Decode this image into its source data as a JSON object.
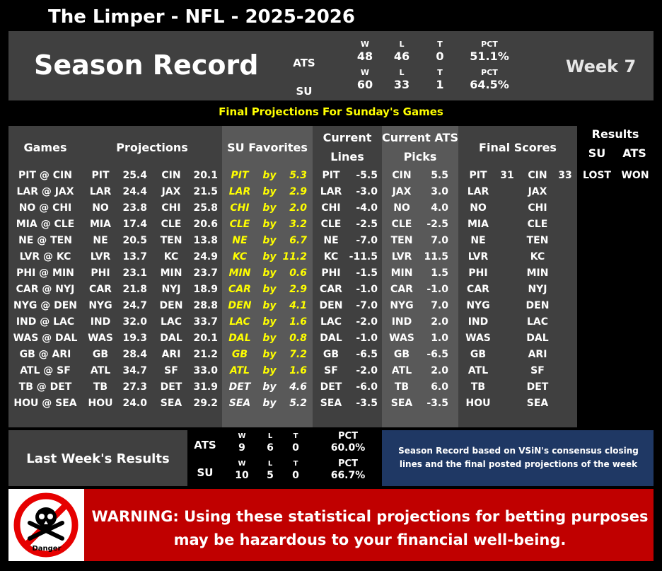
{
  "title": "The Limper - NFL - 2025-2026",
  "season_label": "Season Record",
  "week_label": "Week 7",
  "season_record": {
    "ats": {
      "label": "ATS",
      "w_label": "W",
      "l_label": "L",
      "t_label": "T",
      "pct_label": "PCT",
      "w": "48",
      "l": "46",
      "t": "0",
      "pct": "51.1%"
    },
    "su": {
      "label": "SU",
      "w_label": "W",
      "l_label": "L",
      "t_label": "T",
      "pct_label": "PCT",
      "w": "60",
      "l": "33",
      "t": "1",
      "pct": "64.5%"
    }
  },
  "banner": "Final Projections For Sunday's Games",
  "headers": {
    "games": "Games",
    "projections": "Projections",
    "su_favorites": "SU Favorites",
    "current_lines_1": "Current",
    "current_lines_2": "Lines",
    "current_ats_1": "Current ATS",
    "current_ats_2": "Picks",
    "final_scores": "Final Scores",
    "results": "Results",
    "results_su": "SU",
    "results_ats": "ATS"
  },
  "games": [
    {
      "game": "PIT @ CIN",
      "t1": "PIT",
      "p1": "25.4",
      "t2": "CIN",
      "p2": "20.1",
      "fav": "PIT",
      "by": "by",
      "margin": "5.3",
      "fav_style": "yellow",
      "line_team": "PIT",
      "line": "-5.5",
      "pick": "CIN",
      "pick_line": "5.5",
      "s1": "PIT",
      "sc1": "31",
      "s2": "CIN",
      "sc2": "33",
      "res_su": "LOST",
      "res_ats": "WON"
    },
    {
      "game": "LAR @ JAX",
      "t1": "LAR",
      "p1": "24.4",
      "t2": "JAX",
      "p2": "21.5",
      "fav": "LAR",
      "by": "by",
      "margin": "2.9",
      "fav_style": "yellow",
      "line_team": "LAR",
      "line": "-3.0",
      "pick": "JAX",
      "pick_line": "3.0",
      "s1": "LAR",
      "sc1": "",
      "s2": "JAX",
      "sc2": "",
      "res_su": "",
      "res_ats": ""
    },
    {
      "game": "NO @ CHI",
      "t1": "NO",
      "p1": "23.8",
      "t2": "CHI",
      "p2": "25.8",
      "fav": "CHI",
      "by": "by",
      "margin": "2.0",
      "fav_style": "yellow",
      "line_team": "CHI",
      "line": "-4.0",
      "pick": "NO",
      "pick_line": "4.0",
      "s1": "NO",
      "sc1": "",
      "s2": "CHI",
      "sc2": "",
      "res_su": "",
      "res_ats": ""
    },
    {
      "game": "MIA @ CLE",
      "t1": "MIA",
      "p1": "17.4",
      "t2": "CLE",
      "p2": "20.6",
      "fav": "CLE",
      "by": "by",
      "margin": "3.2",
      "fav_style": "yellow",
      "line_team": "CLE",
      "line": "-2.5",
      "pick": "CLE",
      "pick_line": "-2.5",
      "s1": "MIA",
      "sc1": "",
      "s2": "CLE",
      "sc2": "",
      "res_su": "",
      "res_ats": ""
    },
    {
      "game": "NE @ TEN",
      "t1": "NE",
      "p1": "20.5",
      "t2": "TEN",
      "p2": "13.8",
      "fav": "NE",
      "by": "by",
      "margin": "6.7",
      "fav_style": "yellow",
      "line_team": "NE",
      "line": "-7.0",
      "pick": "TEN",
      "pick_line": "7.0",
      "s1": "NE",
      "sc1": "",
      "s2": "TEN",
      "sc2": "",
      "res_su": "",
      "res_ats": ""
    },
    {
      "game": "LVR @ KC",
      "t1": "LVR",
      "p1": "13.7",
      "t2": "KC",
      "p2": "24.9",
      "fav": "KC",
      "by": "by",
      "margin": "11.2",
      "fav_style": "yellow",
      "line_team": "KC",
      "line": "-11.5",
      "pick": "LVR",
      "pick_line": "11.5",
      "s1": "LVR",
      "sc1": "",
      "s2": "KC",
      "sc2": "",
      "res_su": "",
      "res_ats": ""
    },
    {
      "game": "PHI @ MIN",
      "t1": "PHI",
      "p1": "23.1",
      "t2": "MIN",
      "p2": "23.7",
      "fav": "MIN",
      "by": "by",
      "margin": "0.6",
      "fav_style": "yellow",
      "line_team": "PHI",
      "line": "-1.5",
      "pick": "MIN",
      "pick_line": "1.5",
      "s1": "PHI",
      "sc1": "",
      "s2": "MIN",
      "sc2": "",
      "res_su": "",
      "res_ats": ""
    },
    {
      "game": "CAR @ NYJ",
      "t1": "CAR",
      "p1": "21.8",
      "t2": "NYJ",
      "p2": "18.9",
      "fav": "CAR",
      "by": "by",
      "margin": "2.9",
      "fav_style": "yellow",
      "line_team": "CAR",
      "line": "-1.0",
      "pick": "CAR",
      "pick_line": "-1.0",
      "s1": "CAR",
      "sc1": "",
      "s2": "NYJ",
      "sc2": "",
      "res_su": "",
      "res_ats": ""
    },
    {
      "game": "NYG @ DEN",
      "t1": "NYG",
      "p1": "24.7",
      "t2": "DEN",
      "p2": "28.8",
      "fav": "DEN",
      "by": "by",
      "margin": "4.1",
      "fav_style": "yellow",
      "line_team": "DEN",
      "line": "-7.0",
      "pick": "NYG",
      "pick_line": "7.0",
      "s1": "NYG",
      "sc1": "",
      "s2": "DEN",
      "sc2": "",
      "res_su": "",
      "res_ats": ""
    },
    {
      "game": "IND @ LAC",
      "t1": "IND",
      "p1": "32.0",
      "t2": "LAC",
      "p2": "33.7",
      "fav": "LAC",
      "by": "by",
      "margin": "1.6",
      "fav_style": "yellow",
      "line_team": "LAC",
      "line": "-2.0",
      "pick": "IND",
      "pick_line": "2.0",
      "s1": "IND",
      "sc1": "",
      "s2": "LAC",
      "sc2": "",
      "res_su": "",
      "res_ats": ""
    },
    {
      "game": "WAS @ DAL",
      "t1": "WAS",
      "p1": "19.3",
      "t2": "DAL",
      "p2": "20.1",
      "fav": "DAL",
      "by": "by",
      "margin": "0.8",
      "fav_style": "yellow",
      "line_team": "DAL",
      "line": "-1.0",
      "pick": "WAS",
      "pick_line": "1.0",
      "s1": "WAS",
      "sc1": "",
      "s2": "DAL",
      "sc2": "",
      "res_su": "",
      "res_ats": ""
    },
    {
      "game": "GB @ ARI",
      "t1": "GB",
      "p1": "28.4",
      "t2": "ARI",
      "p2": "21.2",
      "fav": "GB",
      "by": "by",
      "margin": "7.2",
      "fav_style": "yellow",
      "line_team": "GB",
      "line": "-6.5",
      "pick": "GB",
      "pick_line": "-6.5",
      "s1": "GB",
      "sc1": "",
      "s2": "ARI",
      "sc2": "",
      "res_su": "",
      "res_ats": ""
    },
    {
      "game": "ATL @ SF",
      "t1": "ATL",
      "p1": "34.7",
      "t2": "SF",
      "p2": "33.0",
      "fav": "ATL",
      "by": "by",
      "margin": "1.6",
      "fav_style": "yellow",
      "line_team": "SF",
      "line": "-2.0",
      "pick": "ATL",
      "pick_line": "2.0",
      "s1": "ATL",
      "sc1": "",
      "s2": "SF",
      "sc2": "",
      "res_su": "",
      "res_ats": ""
    },
    {
      "game": "TB @ DET",
      "t1": "TB",
      "p1": "27.3",
      "t2": "DET",
      "p2": "31.9",
      "fav": "DET",
      "by": "by",
      "margin": "4.6",
      "fav_style": "white",
      "line_team": "DET",
      "line": "-6.0",
      "pick": "TB",
      "pick_line": "6.0",
      "s1": "TB",
      "sc1": "",
      "s2": "DET",
      "sc2": "",
      "res_su": "",
      "res_ats": ""
    },
    {
      "game": "HOU @ SEA",
      "t1": "HOU",
      "p1": "24.0",
      "t2": "SEA",
      "p2": "29.2",
      "fav": "SEA",
      "by": "by",
      "margin": "5.2",
      "fav_style": "white",
      "line_team": "SEA",
      "line": "-3.5",
      "pick": "SEA",
      "pick_line": "-3.5",
      "s1": "HOU",
      "sc1": "",
      "s2": "SEA",
      "sc2": "",
      "res_su": "",
      "res_ats": ""
    }
  ],
  "last_week": {
    "label": "Last Week's Results",
    "ats": {
      "label": "ATS",
      "w_label": "W",
      "l_label": "L",
      "t_label": "T",
      "pct_label": "PCT",
      "w": "9",
      "l": "6",
      "t": "0",
      "pct": "60.0%"
    },
    "su": {
      "label": "SU",
      "w_label": "W",
      "l_label": "L",
      "t_label": "T",
      "pct_label": "PCT",
      "w": "10",
      "l": "5",
      "t": "0",
      "pct": "66.7%"
    }
  },
  "note": "Season Record based on VSiN's consensus closing lines and the final posted projections of the week",
  "warning": "WARNING: Using these statistical projections for betting purposes may be hazardous to your financial well-being.",
  "danger_label": "Danger",
  "colors": {
    "panel": "#404040",
    "band": "#595959",
    "yellow": "#ffff00",
    "warning_red": "#c00000",
    "note_blue": "#1f3864"
  }
}
